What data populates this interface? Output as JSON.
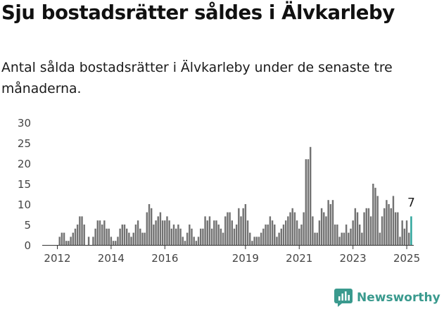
{
  "headline": "Sju bostadsrätter såldes i Älvkarleby",
  "subtitle": "Antal sålda bostadsrätter i Älvkarleby under de senaste tre månaderna.",
  "brand": {
    "name": "Newsworthy",
    "color": "#3a9a8e"
  },
  "chart_data": {
    "type": "bar",
    "title": "",
    "xlabel": "",
    "ylabel": "",
    "ylim": [
      0,
      30
    ],
    "yticks": [
      0,
      5,
      10,
      15,
      20,
      25,
      30
    ],
    "x_start": "2011-08",
    "x_end": "2025-03",
    "xtick_labels": [
      "2012",
      "2014",
      "2016",
      "2019",
      "2021",
      "2023",
      "2025"
    ],
    "series": [
      {
        "values": [
          0,
          0,
          0,
          0,
          0,
          0,
          2,
          3,
          3,
          1,
          1,
          2,
          3,
          4,
          5,
          7,
          7,
          5,
          0,
          2,
          0,
          2,
          4,
          6,
          6,
          5,
          6,
          4,
          4,
          2,
          1,
          1,
          2,
          4,
          5,
          5,
          4,
          3,
          2,
          3,
          5,
          6,
          4,
          3,
          3,
          8,
          10,
          9,
          5,
          6,
          7,
          8,
          6,
          6,
          7,
          6,
          4,
          5,
          4,
          5,
          4,
          2,
          1,
          3,
          5,
          4,
          2,
          1,
          2,
          4,
          4,
          7,
          6,
          7,
          4,
          6,
          6,
          5,
          4,
          3,
          7,
          8,
          8,
          6,
          4,
          5,
          9,
          7,
          9,
          10,
          6,
          3,
          1,
          2,
          2,
          2,
          3,
          4,
          5,
          5,
          7,
          6,
          5,
          2,
          3,
          4,
          5,
          6,
          7,
          8,
          9,
          8,
          6,
          4,
          5,
          8,
          21,
          21,
          24,
          7,
          3,
          3,
          6,
          9,
          8,
          7,
          11,
          10,
          11,
          5,
          5,
          2,
          3,
          3,
          5,
          3,
          4,
          6,
          9,
          8,
          5,
          3,
          8,
          9,
          9,
          7,
          15,
          14,
          12,
          3,
          7,
          9,
          11,
          10,
          9,
          12,
          8,
          8,
          2,
          6,
          4,
          6,
          3,
          7
        ],
        "color": "#727272",
        "highlight_color": "#2aa39a",
        "highlight_last": true
      }
    ],
    "annotation": {
      "label": "7",
      "color": "#1a1a1a"
    },
    "grid": false,
    "axis_color": "#333333",
    "tick_label_color": "#444444"
  }
}
